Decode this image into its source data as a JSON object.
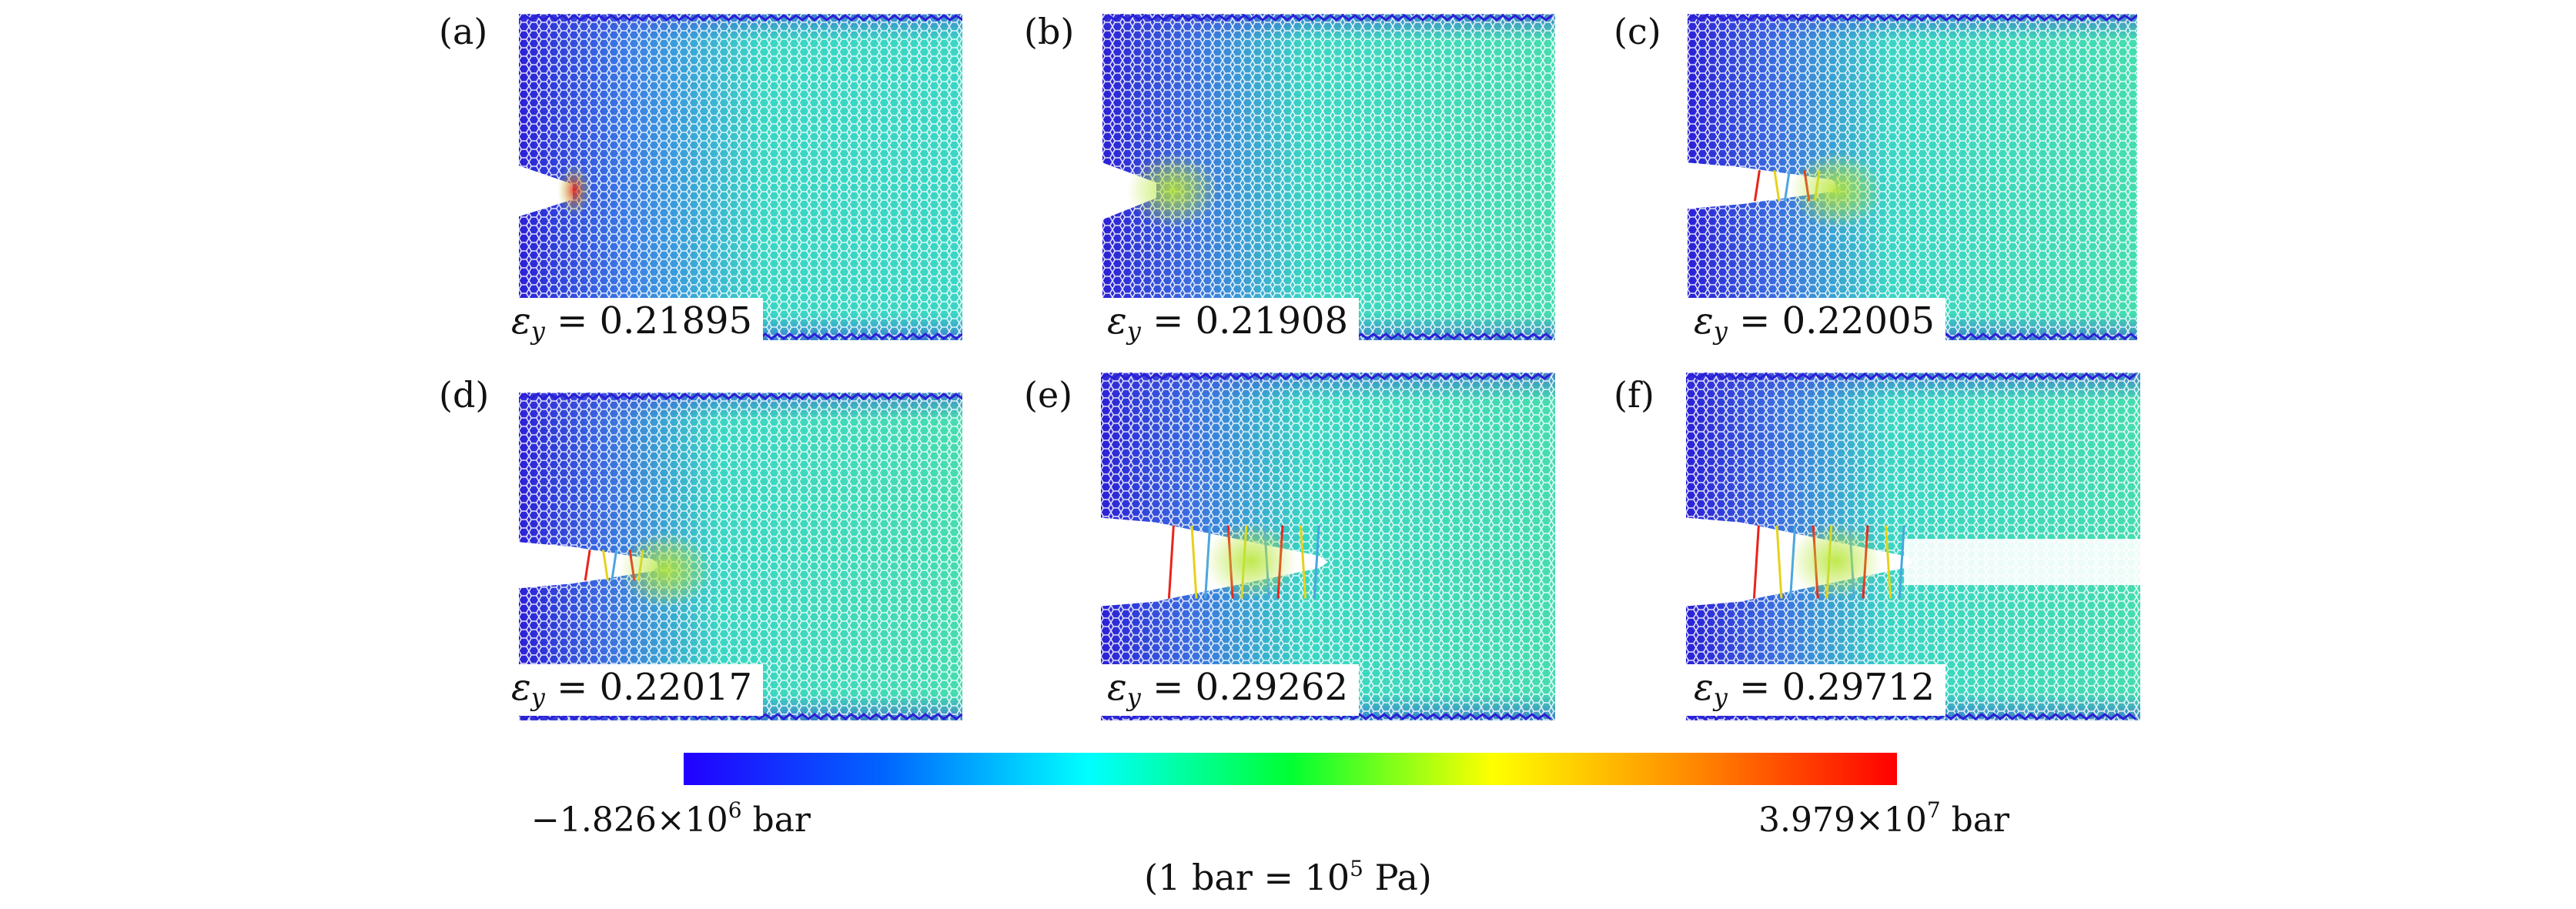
{
  "panels": [
    {
      "letter": "(a)",
      "strain_symbol": "ε",
      "strain_sub": "y",
      "strain_value": "0.21895",
      "state": "notched"
    },
    {
      "letter": "(b)",
      "strain_symbol": "ε",
      "strain_sub": "y",
      "strain_value": "0.21908",
      "state": "crack-onset"
    },
    {
      "letter": "(c)",
      "strain_symbol": "ε",
      "strain_sub": "y",
      "strain_value": "0.22005",
      "state": "crack-growth"
    },
    {
      "letter": "(d)",
      "strain_symbol": "ε",
      "strain_sub": "y",
      "strain_value": "0.22017",
      "state": "crack-growth"
    },
    {
      "letter": "(e)",
      "strain_symbol": "ε",
      "strain_sub": "y",
      "strain_value": "0.29262",
      "state": "bridging"
    },
    {
      "letter": "(f)",
      "strain_symbol": "ε",
      "strain_sub": "y",
      "strain_value": "0.29712",
      "state": "fracture"
    }
  ],
  "colorbar": {
    "min_mantissa": "−1.826",
    "min_times": "×10",
    "min_exp": "6",
    "min_unit": "bar",
    "max_mantissa": "3.979",
    "max_times": "×10",
    "max_exp": "7",
    "max_unit": "bar",
    "colors": [
      "#2200ff",
      "#0066ff",
      "#00ffff",
      "#00ff33",
      "#ffff00",
      "#ff8800",
      "#ff0000"
    ]
  },
  "unit_note": {
    "prefix": "(1 bar = 10",
    "exp": "5",
    "suffix": " Pa)"
  },
  "colors": {
    "low_stress": "#2b1fd6",
    "mid_stress": "#3ad6c4",
    "high_stress": "#e8241a",
    "bond": "#4aa6e0"
  }
}
